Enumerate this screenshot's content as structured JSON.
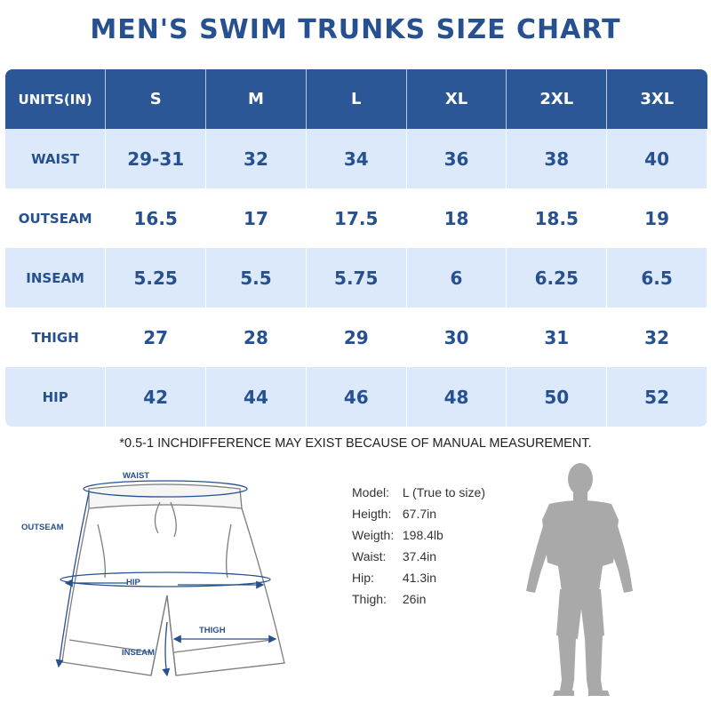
{
  "title": "MEN'S SWIM TRUNKS SIZE CHART",
  "table": {
    "header": [
      "UNITS(IN)",
      "S",
      "M",
      "L",
      "XL",
      "2XL",
      "3XL"
    ],
    "rows": [
      {
        "label": "WAIST",
        "values": [
          "29-31",
          "32",
          "34",
          "36",
          "38",
          "40"
        ]
      },
      {
        "label": "OUTSEAM",
        "values": [
          "16.5",
          "17",
          "17.5",
          "18",
          "18.5",
          "19"
        ]
      },
      {
        "label": "INSEAM",
        "values": [
          "5.25",
          "5.5",
          "5.75",
          "6",
          "6.25",
          "6.5"
        ]
      },
      {
        "label": "THIGH",
        "values": [
          "27",
          "28",
          "29",
          "30",
          "31",
          "32"
        ]
      },
      {
        "label": "HIP",
        "values": [
          "42",
          "44",
          "46",
          "48",
          "50",
          "52"
        ]
      }
    ]
  },
  "note": "*0.5-1 INCHDIFFERENCE MAY EXIST BECAUSE OF MANUAL MEASUREMENT.",
  "diagram": {
    "waist": "WAIST",
    "outseam": "OUTSEAM",
    "hip": "HIP",
    "thigh": "THIGH",
    "inseam": "INSEAM"
  },
  "model": {
    "model": {
      "key": "Model:",
      "value": "L (True to size)"
    },
    "height": {
      "key": "Heigth:",
      "value": "67.7in"
    },
    "weight": {
      "key": "Weigth:",
      "value": "198.4lb"
    },
    "waist": {
      "key": "Waist:",
      "value": "37.4in"
    },
    "hip": {
      "key": "Hip:",
      "value": "41.3in"
    },
    "thigh": {
      "key": "Thigh:",
      "value": "26in"
    }
  },
  "colors": {
    "accent": "#26508f",
    "header_bg": "#2b5797",
    "row_alt": "#dbe9fb",
    "silhouette": "#a9a9a9"
  }
}
